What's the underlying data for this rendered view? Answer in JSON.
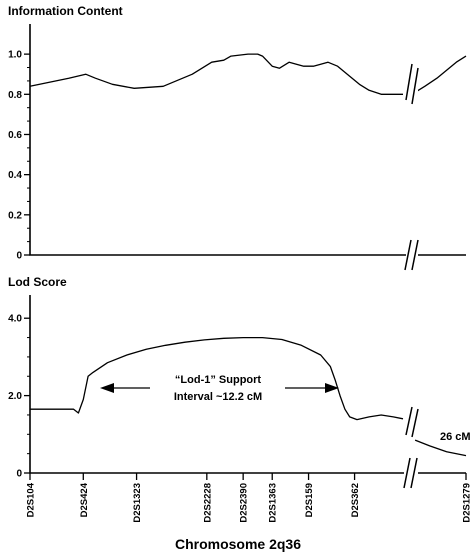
{
  "chart_data": [
    {
      "type": "line",
      "title": "Information Content",
      "ylim": [
        0,
        1.15
      ],
      "yticks": [
        "0",
        "0.2",
        "0.4",
        "0.6",
        "0.8",
        "1.0"
      ],
      "series": [
        {
          "x": [
            0,
            8,
            16,
            23,
            27,
            34,
            43,
            55,
            67,
            75,
            80,
            83,
            90,
            94,
            96,
            100,
            103,
            107,
            110,
            113,
            117,
            120,
            123,
            127,
            132,
            136,
            140,
            145,
            150,
            154
          ],
          "y": [
            0.84,
            0.86,
            0.88,
            0.9,
            0.88,
            0.85,
            0.83,
            0.84,
            0.9,
            0.96,
            0.97,
            0.99,
            1.0,
            1.0,
            0.99,
            0.94,
            0.93,
            0.96,
            0.95,
            0.94,
            0.94,
            0.95,
            0.96,
            0.94,
            0.89,
            0.85,
            0.82,
            0.8,
            0.8,
            0.8
          ]
        },
        {
          "x": [
            159,
            163,
            168,
            172,
            176,
            180
          ],
          "y": [
            0.81,
            0.84,
            0.88,
            0.92,
            0.96,
            0.99
          ]
        }
      ]
    },
    {
      "type": "line",
      "title": "Lod Score",
      "ylim": [
        0,
        4.6
      ],
      "yticks": [
        "0",
        "2.0",
        "4.0"
      ],
      "series": [
        {
          "x": [
            0,
            10,
            18,
            20,
            22,
            24,
            26,
            32,
            40,
            48,
            56,
            64,
            72,
            80,
            88,
            96,
            104,
            112,
            120,
            124,
            126,
            128,
            130,
            132,
            135,
            140,
            145,
            150,
            154
          ],
          "y": [
            1.65,
            1.65,
            1.65,
            1.55,
            1.9,
            2.5,
            2.6,
            2.85,
            3.05,
            3.2,
            3.3,
            3.38,
            3.44,
            3.48,
            3.5,
            3.5,
            3.45,
            3.3,
            3.05,
            2.75,
            2.4,
            2.0,
            1.65,
            1.45,
            1.38,
            1.45,
            1.5,
            1.45,
            1.4
          ]
        },
        {
          "x": [
            159,
            165,
            172,
            180
          ],
          "y": [
            0.85,
            0.7,
            0.55,
            0.45
          ]
        }
      ],
      "annotations": [
        "“Lod-1” Support",
        "Interval ~12.2 cM",
        "26 cM"
      ]
    }
  ],
  "markers": [
    {
      "name": "D2S104",
      "x": 0
    },
    {
      "name": "D2S424",
      "x": 22
    },
    {
      "name": "D2S1323",
      "x": 44
    },
    {
      "name": "D2S2228",
      "x": 73
    },
    {
      "name": "D2S2390",
      "x": 88
    },
    {
      "name": "D2S1363",
      "x": 100
    },
    {
      "name": "D2S159",
      "x": 115
    },
    {
      "name": "D2S362",
      "x": 134
    },
    {
      "name": "D2S1279",
      "x": 180
    }
  ],
  "xlabel": "Chromosome 2q36"
}
